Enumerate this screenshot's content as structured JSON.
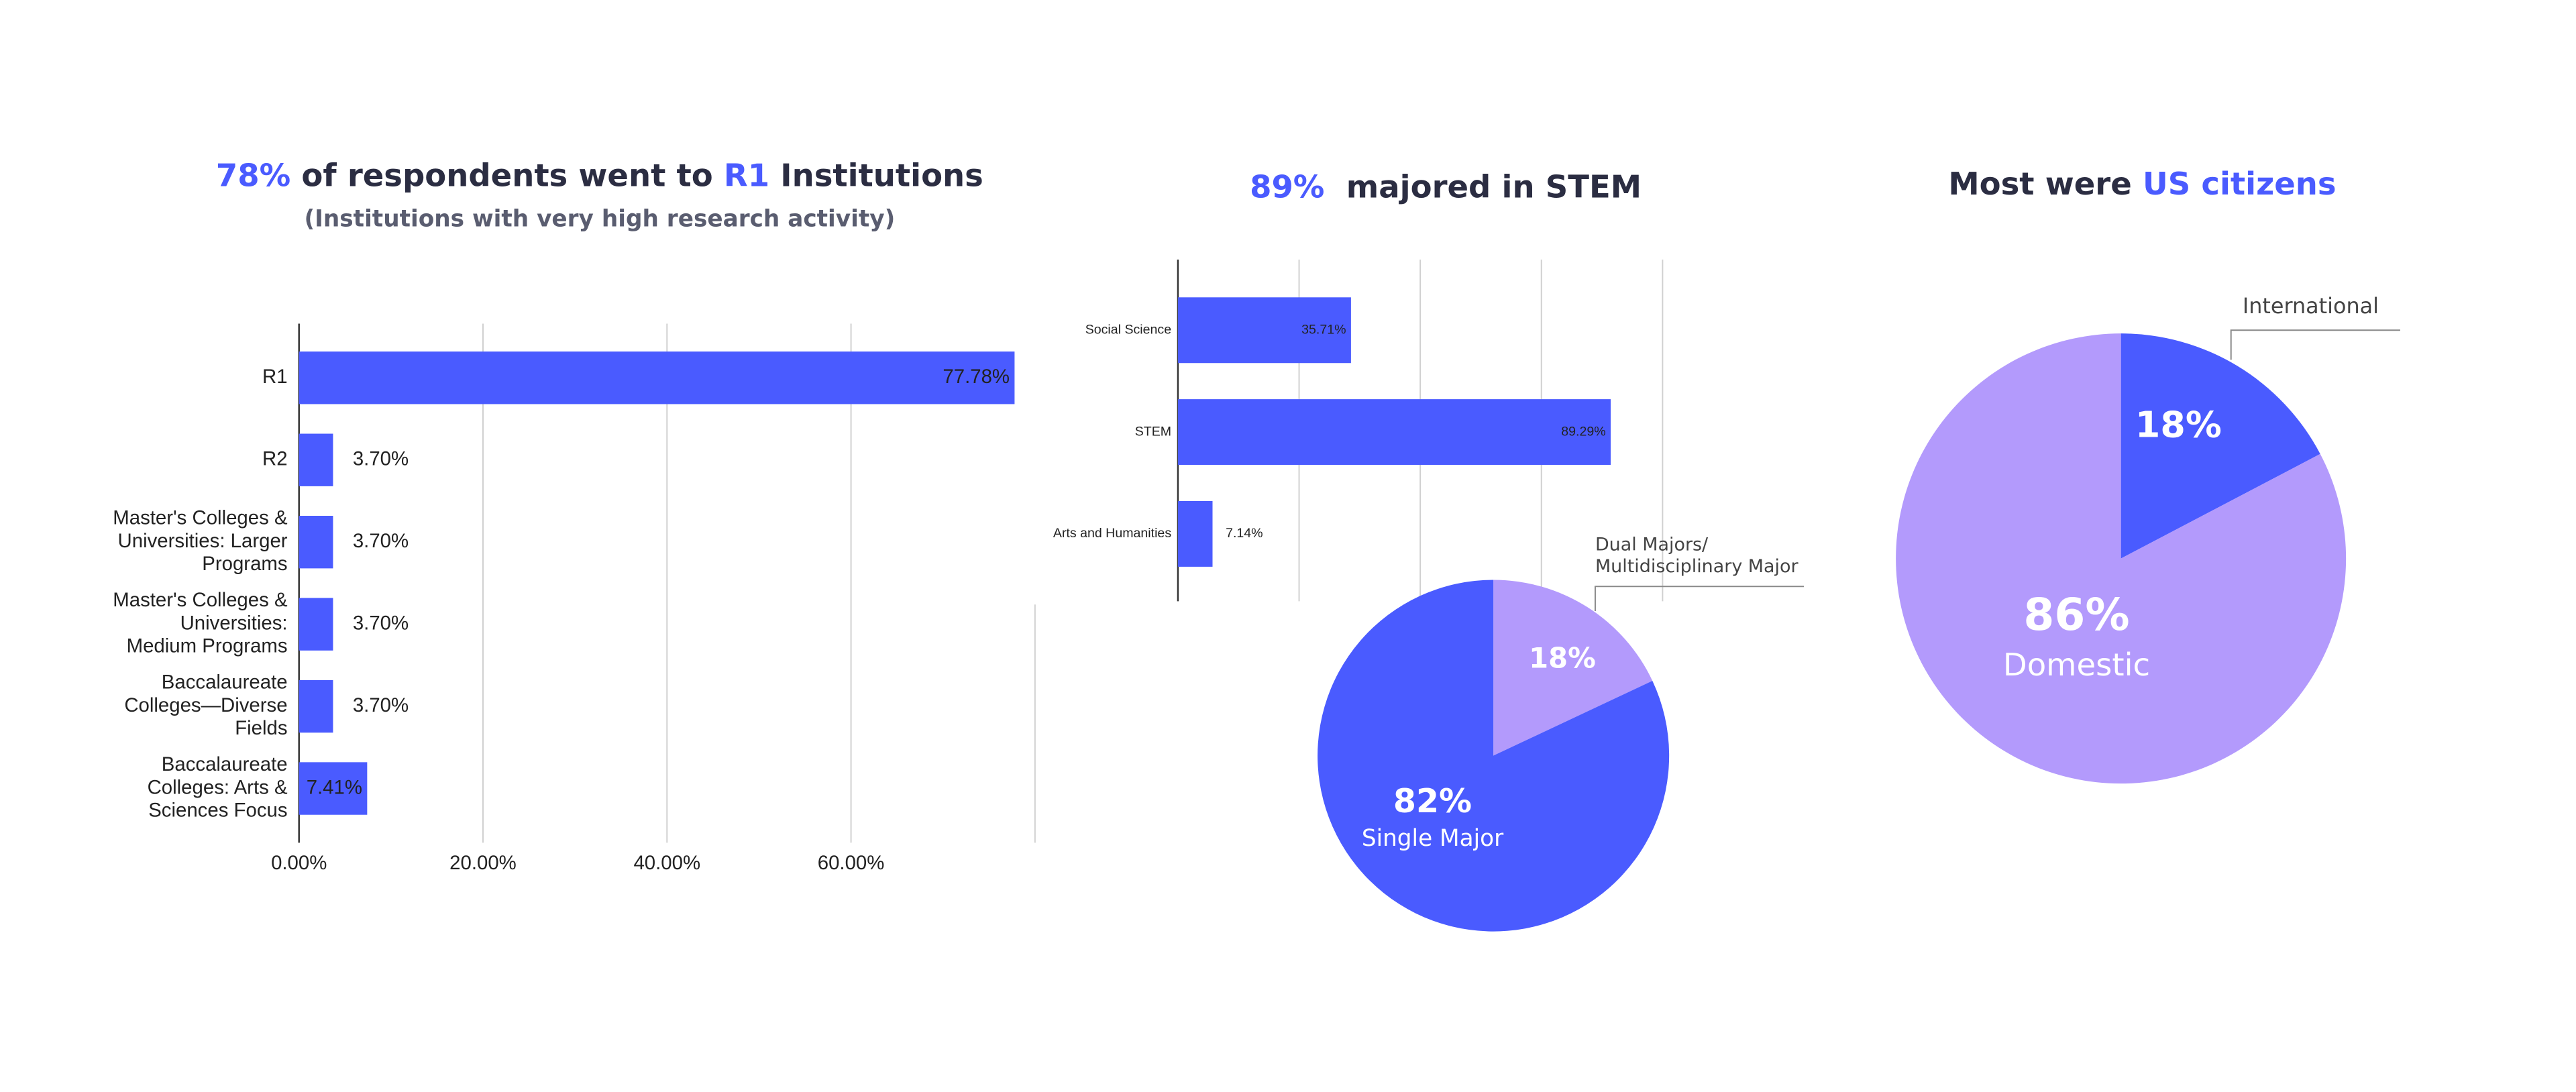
{
  "chart_data": [
    {
      "type": "hbar",
      "title": [
        {
          "text": "78%",
          "color": "#4a5bff"
        },
        {
          "text": " of respondents went to ",
          "color": "#2b2d42"
        },
        {
          "text": "R1",
          "color": "#4a5bff"
        },
        {
          "text": " Institutions",
          "color": "#2b2d42"
        }
      ],
      "subtitle": "(Institutions with very high research activity)",
      "categories": [
        [
          "R1"
        ],
        [
          "R2"
        ],
        [
          "Master's Colleges &",
          "Universities: Larger",
          "Programs"
        ],
        [
          "Master's Colleges &",
          "Universities:",
          "Medium Programs"
        ],
        [
          "Baccalaureate",
          "Colleges—Diverse",
          "Fields"
        ],
        [
          "Baccalaureate",
          "Colleges: Arts &",
          "Sciences Focus"
        ]
      ],
      "values": [
        77.78,
        3.7,
        3.7,
        3.7,
        3.7,
        7.41
      ],
      "value_labels": [
        "77.78%",
        "3.70%",
        "3.70%",
        "3.70%",
        "3.70%",
        "7.41%"
      ],
      "color": "#4a5bff",
      "xlim": [
        0,
        80
      ],
      "xticks": [
        {
          "value": 0,
          "label": "0.00%"
        },
        {
          "value": 20,
          "label": "20.00%"
        },
        {
          "value": 40,
          "label": "40.00%"
        },
        {
          "value": 60,
          "label": "60.00%"
        }
      ],
      "grid": true
    },
    {
      "type": "hbar",
      "title": [
        {
          "text": "89%",
          "color": "#4a5bff"
        },
        {
          "text": "  majored in STEM",
          "color": "#2b2d42"
        }
      ],
      "categories": [
        [
          "Social Science"
        ],
        [
          "STEM"
        ],
        [
          "Arts and Humanities"
        ]
      ],
      "values": [
        35.71,
        89.29,
        7.14
      ],
      "value_labels": [
        "35.71%",
        "89.29%",
        "7.14%"
      ],
      "color": "#4a5bff",
      "xlim": [
        0,
        100
      ],
      "xticks": [
        0,
        25,
        50,
        75,
        100
      ],
      "grid": true
    },
    {
      "type": "pie",
      "labels": [
        [
          "Single Major"
        ],
        [
          "Dual Majors/",
          "Multidisciplinary Major"
        ]
      ],
      "values": [
        82,
        18
      ],
      "value_labels": [
        "82%",
        "18%"
      ],
      "colors": [
        "#4a5bff",
        "#b39afc"
      ],
      "start": "Dual Majors/"
    },
    {
      "type": "pie",
      "title": [
        {
          "text": "Most were ",
          "color": "#2b2d42"
        },
        {
          "text": "US citizens",
          "color": "#4a5bff"
        }
      ],
      "labels": [
        [
          "International"
        ],
        [
          "Domestic"
        ]
      ],
      "values": [
        18,
        86
      ],
      "value_labels": [
        "18%",
        "86%"
      ],
      "colors": [
        "#4a5bff",
        "#b39afc"
      ]
    }
  ]
}
